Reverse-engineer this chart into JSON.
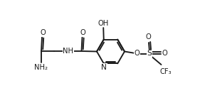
{
  "bg": "#ffffff",
  "lc": "#1a1a1a",
  "lw": 1.35,
  "fs": 7.2,
  "figsize": [
    2.81,
    1.38
  ],
  "dpi": 100,
  "xlim": [
    0,
    2.81
  ],
  "ylim": [
    0,
    1.38
  ]
}
